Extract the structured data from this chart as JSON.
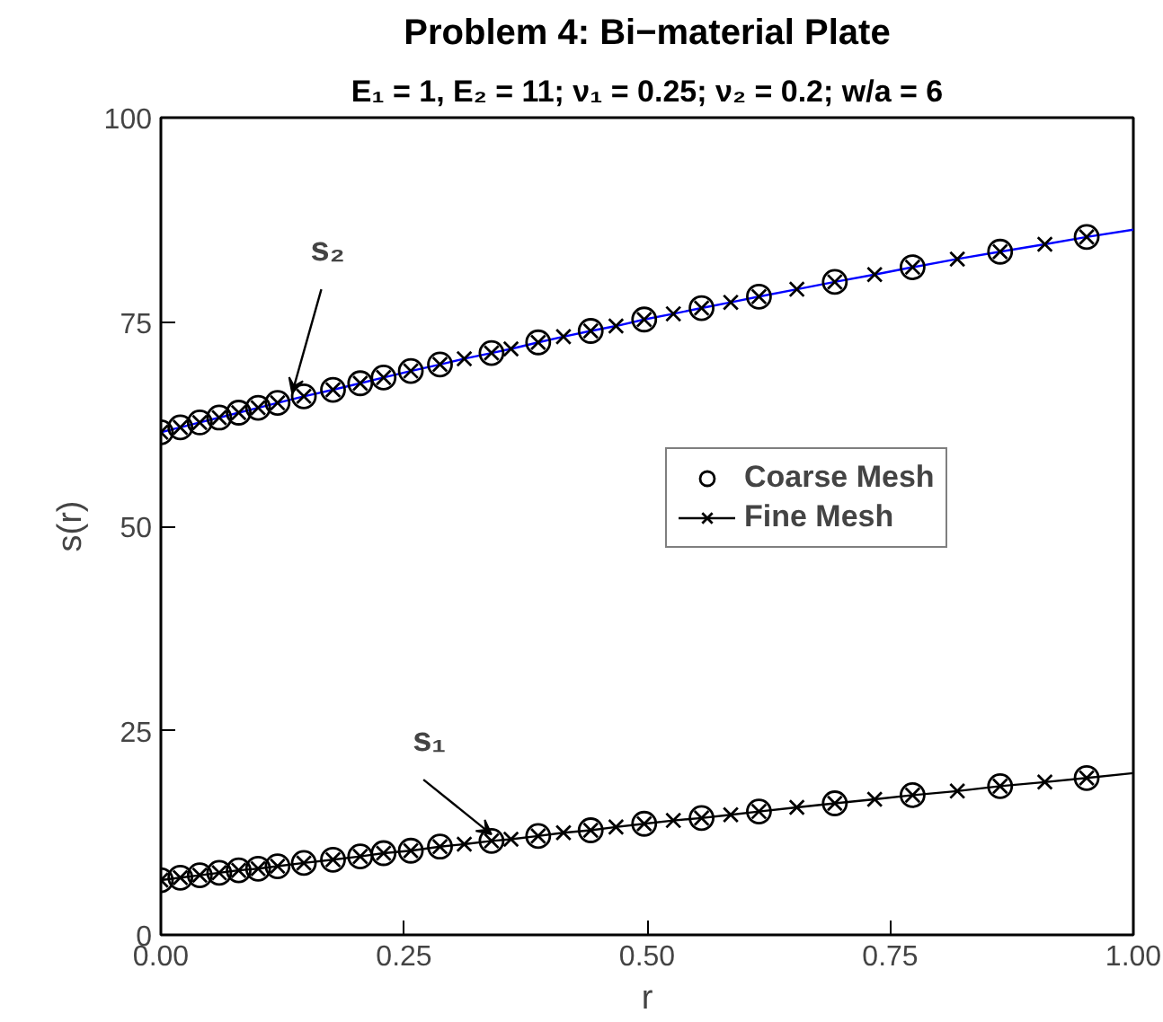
{
  "chart_data": {
    "type": "line",
    "title": "Problem 4: Bi−material Plate",
    "subtitle": "E₁ = 1, E₂ = 11; ν₁ = 0.25; ν₂ = 0.2; w/a = 6",
    "xlabel": "r",
    "ylabel": "s(r)",
    "xlim": [
      0,
      1
    ],
    "xticks": [
      {
        "value": 0,
        "label": "0.00"
      },
      {
        "value": 0.25,
        "label": "0.25"
      },
      {
        "value": 0.5,
        "label": "0.50"
      },
      {
        "value": 0.75,
        "label": "0.75"
      },
      {
        "value": 1,
        "label": "1.00"
      }
    ],
    "ylim": [
      0,
      100
    ],
    "yticks": [
      0,
      25,
      50,
      75,
      100
    ],
    "grid": false,
    "legend": "right",
    "annotations": [
      {
        "text": "s₂",
        "x": 0.135,
        "y": 65.5
      },
      {
        "text": "s₁",
        "x": 0.34,
        "y": 11.5
      }
    ],
    "series": [
      {
        "marker": "none",
        "color": "#0000ff",
        "x": [
          0,
          0.02,
          0.04,
          0.06,
          0.08,
          0.1,
          0.12,
          0.147,
          0.177,
          0.205,
          0.229,
          0.257,
          0.287,
          0.312,
          0.34,
          0.36,
          0.388,
          0.414,
          0.442,
          0.468,
          0.497,
          0.527,
          0.556,
          0.586,
          0.615,
          0.654,
          0.693,
          0.734,
          0.773,
          0.819,
          0.863,
          0.909,
          0.952,
          1.0
        ],
        "values": [
          61.5,
          62.1,
          62.7,
          63.3,
          63.9,
          64.5,
          65.1,
          65.9,
          66.7,
          67.5,
          68.2,
          69.0,
          69.8,
          70.5,
          71.2,
          71.7,
          72.5,
          73.2,
          73.9,
          74.5,
          75.3,
          76.0,
          76.7,
          77.4,
          78.1,
          79.0,
          79.9,
          80.8,
          81.7,
          82.7,
          83.6,
          84.5,
          85.4,
          86.3
        ]
      },
      {
        "color": "#000000",
        "x": [
          0.952,
          1.0
        ],
        "values": [
          19.2,
          19.8
        ]
      },
      {
        "type": "scatter",
        "name": "Coarse Mesh",
        "marker": "circle",
        "color": "#000000",
        "x": [
          0,
          0.02,
          0.04,
          0.06,
          0.08,
          0.1,
          0.12,
          0.147,
          0.177,
          0.205,
          0.229,
          0.257,
          0.287,
          0.34,
          0.388,
          0.442,
          0.497,
          0.556,
          0.615,
          0.693,
          0.773,
          0.863,
          0.952,
          0,
          0.02,
          0.04,
          0.06,
          0.08,
          0.1,
          0.12,
          0.147,
          0.177,
          0.205,
          0.229,
          0.257,
          0.287,
          0.34,
          0.388,
          0.442,
          0.497,
          0.556,
          0.615,
          0.693,
          0.773,
          0.863,
          0.952
        ],
        "values": [
          6.7,
          7.0,
          7.3,
          7.6,
          7.9,
          8.1,
          8.4,
          8.8,
          9.2,
          9.6,
          10.0,
          10.3,
          10.8,
          11.5,
          12.1,
          12.8,
          13.6,
          14.3,
          15.1,
          16.1,
          17.1,
          18.2,
          19.2,
          61.5,
          62.1,
          62.7,
          63.3,
          63.9,
          64.5,
          65.1,
          65.9,
          66.7,
          67.5,
          68.2,
          69.0,
          69.8,
          71.2,
          72.5,
          73.9,
          75.3,
          76.7,
          78.1,
          79.9,
          81.7,
          83.6,
          85.4
        ]
      },
      {
        "name": "Fine Mesh",
        "marker": "cross",
        "color": "#000000",
        "x": [
          0,
          0.02,
          0.04,
          0.06,
          0.08,
          0.1,
          0.12,
          0.147,
          0.177,
          0.205,
          0.229,
          0.257,
          0.287,
          0.312,
          0.34,
          0.36,
          0.388,
          0.414,
          0.442,
          0.468,
          0.497,
          0.527,
          0.556,
          0.586,
          0.615,
          0.654,
          0.693,
          0.734,
          0.773,
          0.819,
          0.863,
          0.909,
          0.952
        ],
        "values": [
          6.7,
          7.0,
          7.3,
          7.6,
          7.9,
          8.1,
          8.4,
          8.8,
          9.2,
          9.6,
          10.0,
          10.3,
          10.8,
          11.1,
          11.5,
          11.7,
          12.1,
          12.5,
          12.8,
          13.2,
          13.6,
          14.0,
          14.3,
          14.7,
          15.1,
          15.6,
          16.1,
          16.6,
          17.1,
          17.6,
          18.2,
          18.7,
          19.2
        ]
      },
      {
        "type": "scatter",
        "marker": "cross",
        "color": "#000000",
        "x": [
          0,
          0.02,
          0.04,
          0.06,
          0.08,
          0.1,
          0.12,
          0.147,
          0.177,
          0.205,
          0.229,
          0.257,
          0.287,
          0.312,
          0.34,
          0.36,
          0.388,
          0.414,
          0.442,
          0.468,
          0.497,
          0.527,
          0.556,
          0.586,
          0.615,
          0.654,
          0.693,
          0.734,
          0.773,
          0.819,
          0.863,
          0.909,
          0.952
        ],
        "values": [
          61.5,
          62.1,
          62.7,
          63.3,
          63.9,
          64.5,
          65.1,
          65.9,
          66.7,
          67.5,
          68.2,
          69.0,
          69.8,
          70.5,
          71.2,
          71.7,
          72.5,
          73.2,
          73.9,
          74.5,
          75.3,
          76.0,
          76.7,
          77.4,
          78.1,
          79.0,
          79.9,
          80.8,
          81.7,
          82.7,
          83.6,
          84.5,
          85.4
        ]
      }
    ]
  }
}
